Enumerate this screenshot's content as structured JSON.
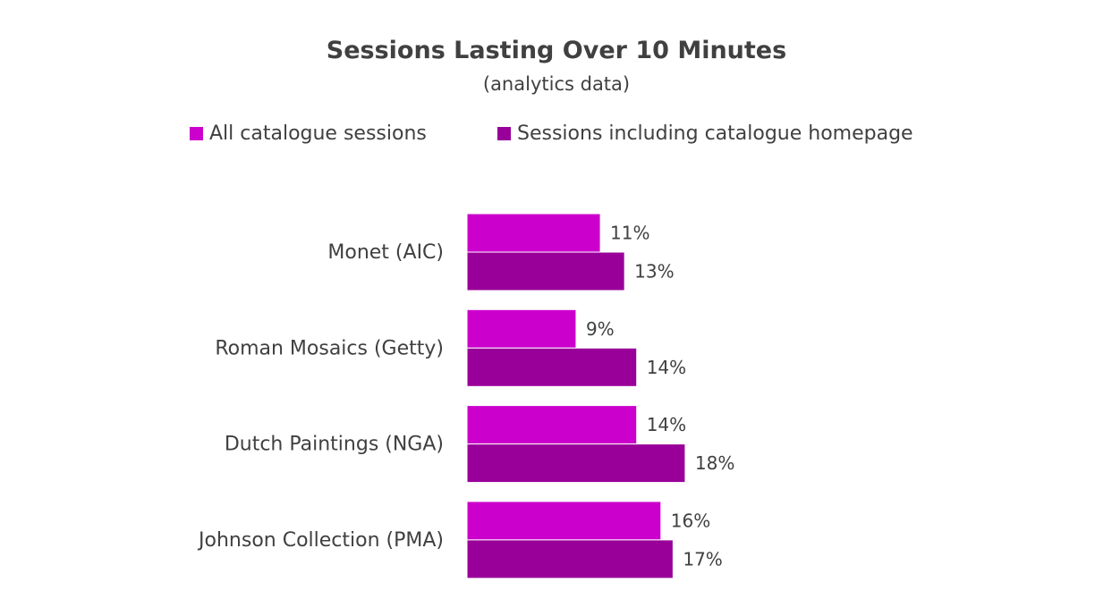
{
  "chart_data": {
    "type": "bar",
    "orientation": "horizontal",
    "title": "Sessions Lasting Over 10 Minutes",
    "subtitle": "(analytics data)",
    "categories": [
      "Monet (AIC)",
      "Roman Mosaics (Getty)",
      "Dutch Paintings (NGA)",
      "Johnson Collection (PMA)"
    ],
    "series": [
      {
        "name": "All catalogue sessions",
        "values": [
          11,
          9,
          14,
          16
        ],
        "labels": [
          "11%",
          "9%",
          "14%",
          "16%"
        ],
        "color": "#CC00CC"
      },
      {
        "name": "Sessions including catalogue homepage",
        "values": [
          13,
          14,
          18,
          17
        ],
        "labels": [
          "13%",
          "14%",
          "18%",
          "17%"
        ],
        "color": "#990099"
      }
    ],
    "value_unit": "%",
    "legend_position": "top",
    "grid": false,
    "axis_visible": false
  }
}
